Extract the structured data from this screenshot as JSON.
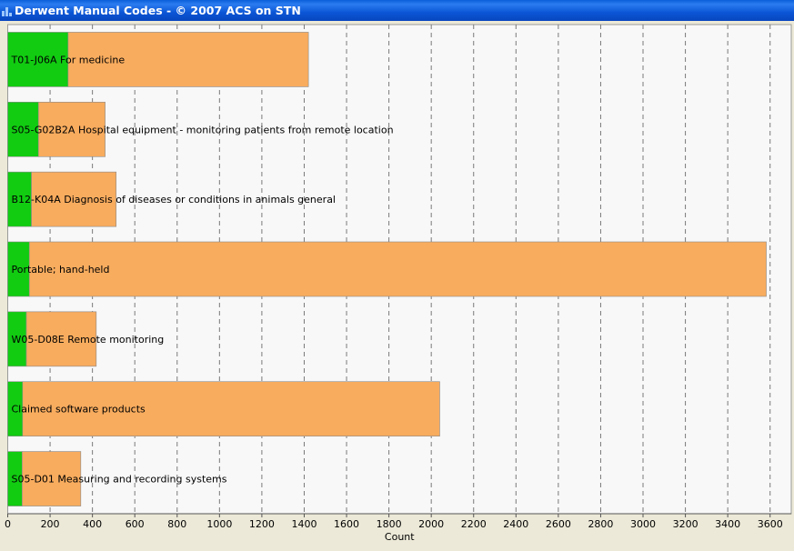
{
  "window": {
    "title": "Derwent Manual Codes - © 2007 ACS on STN"
  },
  "colors": {
    "primary": "#11cc11",
    "secondary": "#f8ac5e",
    "plot_bg": "#f8f8f8",
    "grid": "#7a7a7a"
  },
  "chart_data": {
    "type": "bar",
    "orientation": "horizontal",
    "stacked": true,
    "title": "",
    "xlabel": "Count",
    "ylabel": "",
    "xlim": [
      0,
      3700
    ],
    "xticks": [
      0,
      200,
      400,
      600,
      800,
      1000,
      1200,
      1400,
      1600,
      1800,
      2000,
      2200,
      2400,
      2600,
      2800,
      3000,
      3200,
      3400,
      3600
    ],
    "grid": "vertical dashed",
    "legend": "none",
    "categories": [
      "T01-J06A For medicine",
      "S05-G02B2A Hospital equipment - monitoring patients from remote location",
      "B12-K04A Diagnosis of diseases or conditions in animals general",
      "Portable; hand-held",
      "W05-D08E Remote monitoring",
      "Claimed software products",
      "S05-D01 Measuring and recording systems"
    ],
    "series": [
      {
        "values": [
          285,
          145,
          112,
          102,
          88,
          70,
          68
        ]
      },
      {
        "values": [
          1135,
          315,
          400,
          3480,
          330,
          1970,
          277
        ]
      }
    ],
    "totals": [
      1420,
      460,
      512,
      3582,
      418,
      2040,
      345
    ]
  }
}
